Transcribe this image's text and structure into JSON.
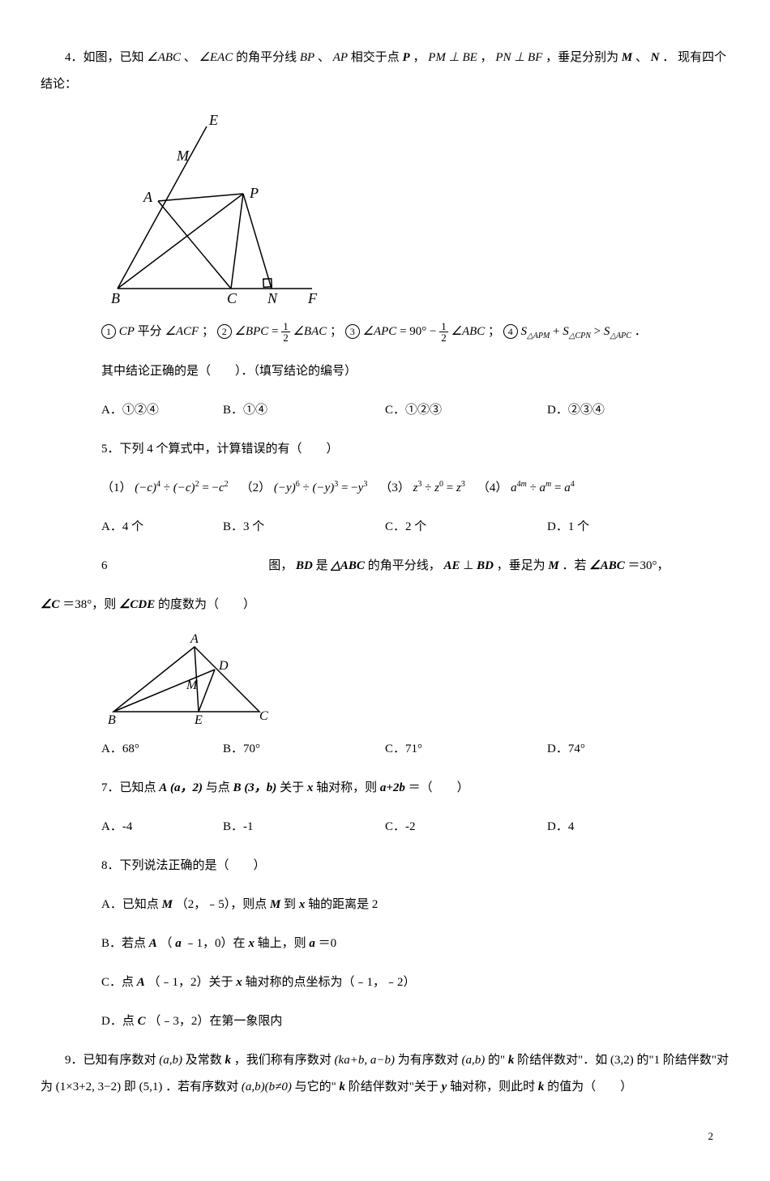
{
  "q4": {
    "stem_prefix": "4．如图，已知",
    "stem_mid1": "的角平分线",
    "stem_mid2": "相交于点",
    "stem_mid3": "，垂足分别为",
    "stem_suffix": "现有四个结论：",
    "abc": "∠ABC",
    "eac": "∠EAC",
    "bp": "BP",
    "ap": "AP",
    "p": "P",
    "pm_be": "PM ⊥ BE",
    "pn_bf": "PN ⊥ BF",
    "m": "M",
    "n": "N",
    "dot": "、",
    "period": "．",
    "comma": "，",
    "diagram": {
      "labels": {
        "E": "E",
        "M": "M",
        "A": "A",
        "P": "P",
        "B": "B",
        "C": "C",
        "N": "N",
        "F": "F"
      },
      "stroke": "#000",
      "font": "italic 18px Times New Roman"
    },
    "conc1_a": "平分",
    "conc1_cp": "CP",
    "conc1_acf": "∠ACF",
    "conc2_lhs": "∠BPC",
    "conc2_rhs": "∠BAC",
    "conc3_lhs": "∠APC",
    "conc3_mid": "90°",
    "conc3_rhs": "∠ABC",
    "conc4": {
      "s1": "S",
      "apm": "△APM",
      "s2": "S",
      "cpn": "△CPN",
      "s3": "S",
      "apc": "△APC",
      "gt": ">",
      "plus": "+"
    },
    "sep": "；",
    "stem2": "其中结论正确的是（　　）．（填写结论的编号）",
    "opts": {
      "A": "A．①②④",
      "B": "B．①④",
      "C": "C．①②③",
      "D": "D．②③④"
    },
    "opt_widths": {
      "A": "150px",
      "B": "200px",
      "C": "200px",
      "D": "150px"
    }
  },
  "q5": {
    "stem": "5．下列 4 个算式中，计算错误的有（　　）",
    "e1": {
      "label": "（1）",
      "base1": "(-c)",
      "p1": "4",
      "div": "÷",
      "base2": "(-c)",
      "p2": "2",
      "eq": "= -c",
      "p3": "2"
    },
    "e2": {
      "label": "（2）",
      "base1": "(-y)",
      "p1": "6",
      "div": "÷",
      "base2": "(-y)",
      "p2": "3",
      "eq": "= -y",
      "p3": "3"
    },
    "e3": {
      "label": "（3）",
      "base": "z",
      "p1": "3",
      "div": "÷",
      "p2": "0",
      "eq": "= z",
      "p3": "3"
    },
    "e4": {
      "label": "（4）",
      "base": "a",
      "p1": "4m",
      "div": "÷",
      "p2": "m",
      "eq": "= a",
      "p3": "4"
    },
    "opts": {
      "A": "A．4 个",
      "B": "B．3 个",
      "C": "C．2 个",
      "D": "D．1 个"
    },
    "opt_widths": {
      "A": "150px",
      "B": "200px",
      "C": "200px",
      "D": "150px"
    }
  },
  "q6": {
    "prefix": "6",
    "gap": "　　　　　　　　　　　　　",
    "stem_a": "图，",
    "bd": "BD",
    "is": "是",
    "tri": "△ABC",
    "mid1": "的角平分线，",
    "ae": "AE",
    "perp": "⊥",
    "bd2": "BD",
    "mid2": "，垂足为",
    "m": "M",
    "mid3": "．若",
    "abc": "∠ABC",
    "eq": "＝30°，",
    "c": "∠C",
    "eq2": "＝38°，则",
    "cde": "∠CDE",
    "tail": "的度数为（　　）",
    "diagram": {
      "labels": {
        "A": "A",
        "D": "D",
        "M": "M",
        "B": "B",
        "E": "E",
        "C": "C"
      },
      "stroke": "#000",
      "font": "italic 16px Times New Roman"
    },
    "opts": {
      "A": "A．68°",
      "B": "B．70°",
      "C": "C．71°",
      "D": "D．74°"
    },
    "opt_widths": {
      "A": "150px",
      "B": "200px",
      "C": "200px",
      "D": "150px"
    }
  },
  "q7": {
    "stem_a": "7．已知点",
    "A": "A",
    "pa": "(a，2)",
    "mid1": "与点",
    "B": "B",
    "pb": "(3，b)",
    "mid2": "关于",
    "x": "x",
    "mid3": "轴对称，则",
    "expr": "a+2b",
    "tail": "＝（　　）",
    "opts": {
      "A": "A．-4",
      "B": "B．-1",
      "C": "C．-2",
      "D": "D．4"
    },
    "opt_widths": {
      "A": "150px",
      "B": "200px",
      "C": "200px",
      "D": "150px"
    }
  },
  "q8": {
    "stem": "8．下列说法正确的是（　　）",
    "A_a": "A．已知点",
    "A_m": "M",
    "A_b": "（2，﹣5），则点",
    "A_m2": "M",
    "A_c": "到",
    "A_x": "x",
    "A_d": "轴的距离是 2",
    "B_a": "B．若点",
    "B_A": "A",
    "B_b": "（",
    "B_a1": "a",
    "B_c": "﹣1，0）在",
    "B_x": "x",
    "B_d": "轴上，则",
    "B_a2": "a",
    "B_e": "＝0",
    "C_a": "C．点",
    "C_A": "A",
    "C_b": "（﹣1，2）关于",
    "C_x": "x",
    "C_c": "轴对称的点坐标为（﹣1，﹣2）",
    "D_a": "D．点",
    "D_C": "C",
    "D_b": "（﹣3，2）在第一象限内"
  },
  "q9": {
    "a": "9．已知有序数对",
    "ab": "(a,b)",
    "b": "及常数",
    "k": "k",
    "c": "，我们称有序数对",
    "kab": "(ka+b, a−b)",
    "d": "为有序数对",
    "ab2": "(a,b)",
    "e": "的\"",
    "k2": "k",
    "f": "阶结伴数对\"．如",
    "g": "(3,2)",
    "h": "的\"1 阶结伴数\"对为",
    "i": "(1×3+2, 3−2)",
    "j": "即",
    "k3": "(5,1)",
    "l": "．若有序数对",
    "ab3": "(a,b)(b≠0)",
    "m": "与它的\"",
    "kk": "k",
    "n": "阶结伴数对\"关于",
    "y": "y",
    "o": "轴对称，则此时",
    "kkk": "k",
    "p": "的值为（　　）"
  },
  "page_num": "2"
}
